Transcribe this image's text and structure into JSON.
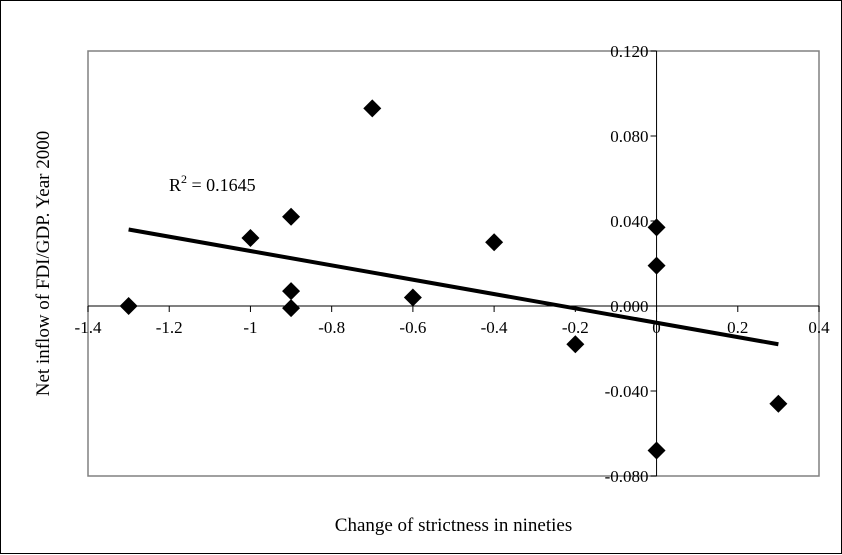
{
  "chart_data": {
    "type": "scatter",
    "title": "",
    "xlabel": "Change of strictness in nineties",
    "ylabel": "Net inflow of FDI/GDP. Year 2000",
    "xlim": [
      -1.4,
      0.4
    ],
    "ylim": [
      -0.08,
      0.12
    ],
    "x_ticks": [
      -1.4,
      -1.2,
      -1,
      -0.8,
      -0.6,
      -0.4,
      -0.2,
      0,
      0.2,
      0.4
    ],
    "x_tick_labels": [
      "-1.4",
      "-1.2",
      "-1",
      "-0.8",
      "-0.6",
      "-0.4",
      "-0.2",
      "0",
      "0.2",
      "0.4"
    ],
    "y_ticks": [
      -0.08,
      -0.04,
      0,
      0.04,
      0.08,
      0.12
    ],
    "y_tick_labels": [
      "-0.080",
      "-0.040",
      "0.000",
      "0.040",
      "0.080",
      "0.120"
    ],
    "grid": false,
    "legend": "none",
    "marker": "diamond",
    "points": [
      {
        "x": -1.3,
        "y": 0.0
      },
      {
        "x": -1.0,
        "y": 0.032
      },
      {
        "x": -0.9,
        "y": 0.042
      },
      {
        "x": -0.9,
        "y": 0.007
      },
      {
        "x": -0.9,
        "y": -0.001
      },
      {
        "x": -0.7,
        "y": 0.093
      },
      {
        "x": -0.6,
        "y": 0.004
      },
      {
        "x": -0.4,
        "y": 0.03
      },
      {
        "x": -0.2,
        "y": -0.018
      },
      {
        "x": 0.0,
        "y": 0.037
      },
      {
        "x": 0.0,
        "y": 0.019
      },
      {
        "x": 0.0,
        "y": -0.068
      },
      {
        "x": 0.3,
        "y": -0.046
      }
    ],
    "trendline": {
      "type": "linear",
      "x0": -1.3,
      "y0": 0.036,
      "x1": 0.3,
      "y1": -0.018
    },
    "annotation": {
      "base": "R",
      "superscript": "2",
      "text": " = 0.1645"
    },
    "colors": {
      "marker": "#000000",
      "trendline": "#000000",
      "plot_border": "#808080",
      "axis": "#000000"
    }
  }
}
